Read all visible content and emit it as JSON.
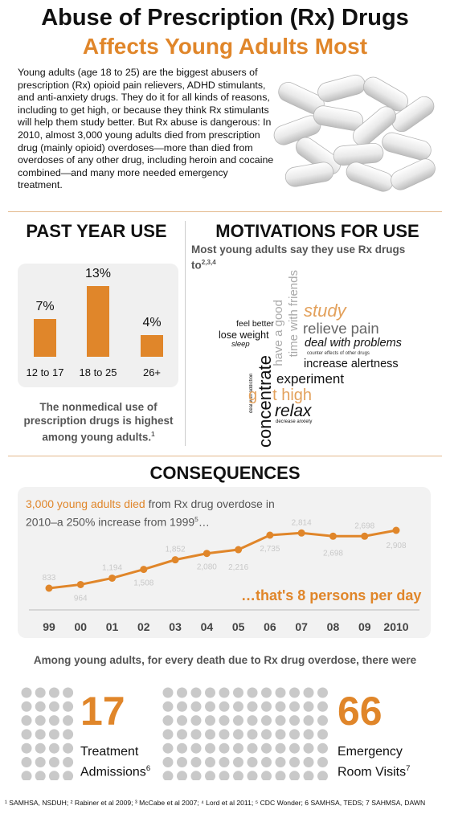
{
  "header": {
    "title_line1": "Abuse of Prescription (Rx) Drugs",
    "title_line2": "Affects Young Adults Most"
  },
  "intro": {
    "text": "Young adults (age 18 to 25) are the biggest abusers of prescription (Rx) opioid pain relievers, ADHD stimulants, and anti-anxiety drugs. They do it for all kinds of reasons, including to get high, or because they think Rx stimulants will help them study better. But Rx abuse is dangerous: In 2010, almost 3,000 young adults died from prescription drug (mainly opioid) overdoses—more than died from overdoses of any other drug, including heroin and cocaine combined—and many more needed emergency treatment."
  },
  "past_year": {
    "heading": "PAST YEAR USE",
    "caption": "The nonmedical use of prescription drugs is highest among young adults.",
    "caption_sup": "1"
  },
  "motivations": {
    "heading": "MOTIVATIONS FOR USE",
    "subtitle": "Most young adults say they use Rx drugs to",
    "subtitle_sup": "2,3,4",
    "words": {
      "feel_better": "feel better",
      "lose_weight": "lose weight",
      "sleep": "sleep",
      "deal_with_addiction": "deal with addiction",
      "have_a_good": "have a good",
      "time_with_friends": "time with friends",
      "study": "study",
      "relieve_pain": "relieve pain",
      "deal_with_problems": "deal with problems",
      "counter_effects": "counter effects of other drugs",
      "increase_alertness": "increase alertness",
      "experiment": "experiment",
      "get_high_g": "g",
      "get_high_rest": "t high",
      "concentrate": "concentrate",
      "relax": "relax",
      "decrease_anxiety": "decrease anxiety"
    }
  },
  "consequences": {
    "heading": "CONSEQUENCES",
    "text_highlight": "3,000 young adults died",
    "text_rest": " from Rx drug overdose in 2010–a 250% increase from 1999",
    "text_sup": "5",
    "text_tail": "…",
    "per_day": "…that's 8 persons per day"
  },
  "comparison": {
    "among_text": "Among young adults, for every death due to Rx drug overdose, there were",
    "treatment_number": "17",
    "treatment_label1": "Treatment",
    "treatment_label2": "Admissions",
    "treatment_sup": "6",
    "er_number": "66",
    "er_label1": "Emergency",
    "er_label2": "Room Visits",
    "er_sup": "7"
  },
  "footnote": "¹ SAMHSA, NSDUH; ² Rabiner et al 2009; ³ McCabe et al 2007; ⁴ Lord et al 2011; ⁵ CDC Wonder; 6 SAMHSA, TEDS; 7 SAHMSA, DAWN",
  "chart_data": [
    {
      "type": "bar",
      "categories": [
        "12 to 17",
        "18 to 25",
        "26+"
      ],
      "values": [
        7,
        13,
        4
      ],
      "value_labels": [
        "7%",
        "13%",
        "4%"
      ],
      "title": "",
      "xlabel": "",
      "ylabel": "",
      "color": "#e0862a",
      "grid": false
    },
    {
      "type": "line",
      "x": [
        "99",
        "00",
        "01",
        "02",
        "03",
        "04",
        "05",
        "06",
        "07",
        "08",
        "09",
        "2010"
      ],
      "values": [
        833,
        964,
        1194,
        1508,
        1852,
        2080,
        2216,
        2735,
        2814,
        2698,
        2698,
        2908
      ],
      "value_labels": [
        "833",
        "964",
        "1,194",
        "1,508",
        "1,852",
        "2,080",
        "2,216",
        "2,735",
        "2,814",
        "2,698",
        "2,698",
        "2,908"
      ],
      "title": "",
      "xlabel": "",
      "ylabel": "",
      "color": "#e0862a",
      "grid": false
    }
  ]
}
